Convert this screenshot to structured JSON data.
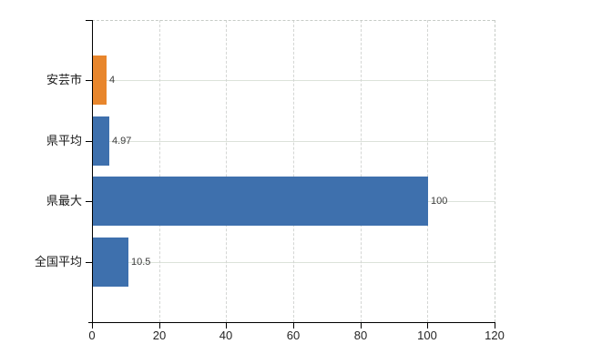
{
  "chart_data": {
    "type": "bar",
    "orientation": "horizontal",
    "title": "",
    "categories": [
      "安芸市",
      "県平均",
      "県最大",
      "全国平均"
    ],
    "values": [
      4,
      4.97,
      100,
      10.5
    ],
    "value_labels": [
      "4",
      "4.97",
      "100",
      "10.5"
    ],
    "bar_colors": [
      "#E8862C",
      "#3E70AD",
      "#3E70AD",
      "#3E70AD"
    ],
    "x_ticks": [
      0,
      20,
      40,
      60,
      80,
      100,
      120
    ],
    "x_tick_labels": [
      "0",
      "20",
      "40",
      "60",
      "80",
      "100",
      "120"
    ],
    "xlim": [
      0,
      120
    ],
    "grid": true,
    "legend_position": "none"
  },
  "colors": {
    "background": "#ffffff",
    "bar_default": "#3E70AD",
    "bar_highlight": "#E8862C",
    "axis": "#000000",
    "grid_horizontal": "#dce2da",
    "grid_vertical": "#d4d6d4",
    "category_label": "#1a1a1a",
    "value_label": "#3c3c3c"
  }
}
